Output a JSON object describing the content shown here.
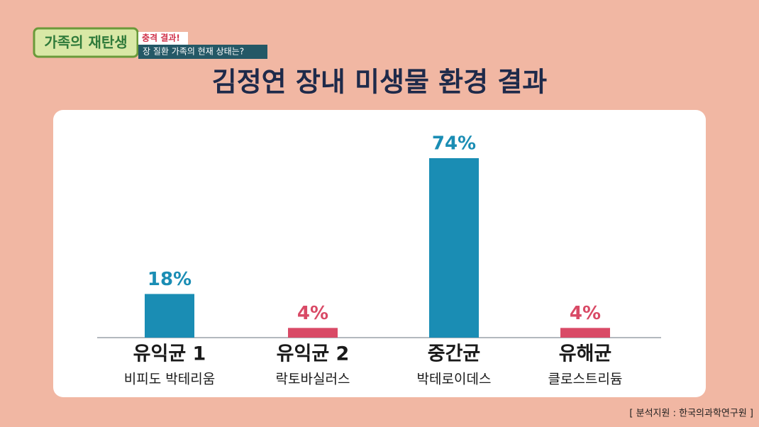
{
  "header": {
    "logo": "가족의 재탄생",
    "badge": "충격 결과!",
    "caption": "장 질환 가족의 현재 상태는?"
  },
  "chart_data": {
    "type": "bar",
    "title": "김정연 장내 미생물 환경 결과",
    "categories": [
      "유익균 1",
      "유익균 2",
      "중간균",
      "유해균"
    ],
    "category_descriptions": [
      "비피도 박테리움",
      "락토바실러스",
      "박테로이데스",
      "클로스트리듐"
    ],
    "values": [
      18,
      4,
      74,
      4
    ],
    "value_labels": [
      "18%",
      "4%",
      "74%",
      "4%"
    ],
    "colors": [
      "#1a8db4",
      "#d94a66",
      "#1a8db4",
      "#d94a66"
    ]
  },
  "source": "[ 분석지원 : 한국의과학연구원 ]"
}
